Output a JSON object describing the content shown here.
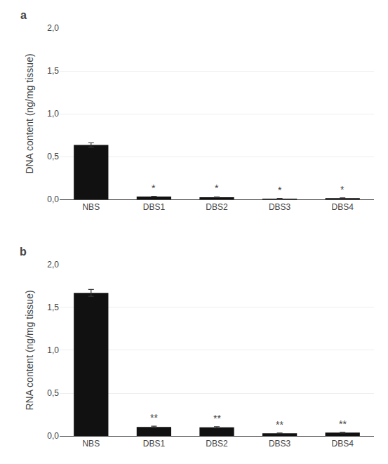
{
  "chart_data": [
    {
      "type": "bar",
      "title": "a",
      "categories": [
        "NBS",
        "DBS1",
        "DBS2",
        "DBS3",
        "DBS4"
      ],
      "values": [
        0.635,
        0.033,
        0.025,
        0.008,
        0.015
      ],
      "errors": [
        0.025,
        0.004,
        0.004,
        0.003,
        0.003
      ],
      "color": "#111111",
      "ylabel": "DNA content (ng/mg tissue)",
      "ylim": [
        0,
        2.0
      ],
      "yticks": [
        {
          "value": 0.0,
          "label": "0,0"
        },
        {
          "value": 0.5,
          "label": "0,5"
        },
        {
          "value": 1.0,
          "label": "1,0"
        },
        {
          "value": 1.5,
          "label": "1,5"
        },
        {
          "value": 2.0,
          "label": "2,0"
        }
      ],
      "grid": true,
      "annotations": [
        {
          "x": "DBS1",
          "text": "*"
        },
        {
          "x": "DBS2",
          "text": "*"
        },
        {
          "x": "DBS3",
          "text": "*"
        },
        {
          "x": "DBS4",
          "text": "*"
        }
      ]
    },
    {
      "type": "bar",
      "title": "b",
      "categories": [
        "NBS",
        "DBS1",
        "DBS2",
        "DBS3",
        "DBS4"
      ],
      "values": [
        1.67,
        0.105,
        0.1,
        0.03,
        0.038
      ],
      "errors": [
        0.04,
        0.008,
        0.007,
        0.003,
        0.004
      ],
      "color": "#111111",
      "ylabel": "RNA content (ng/mg tissue)",
      "ylim": [
        0,
        2.0
      ],
      "yticks": [
        {
          "value": 0.0,
          "label": "0,0"
        },
        {
          "value": 0.5,
          "label": "0,5"
        },
        {
          "value": 1.0,
          "label": "1,0"
        },
        {
          "value": 1.5,
          "label": "1,5"
        },
        {
          "value": 2.0,
          "label": "2,0"
        }
      ],
      "grid": true,
      "annotations": [
        {
          "x": "DBS1",
          "text": "**"
        },
        {
          "x": "DBS2",
          "text": "**"
        },
        {
          "x": "DBS3",
          "text": "**"
        },
        {
          "x": "DBS4",
          "text": "**"
        }
      ]
    }
  ]
}
